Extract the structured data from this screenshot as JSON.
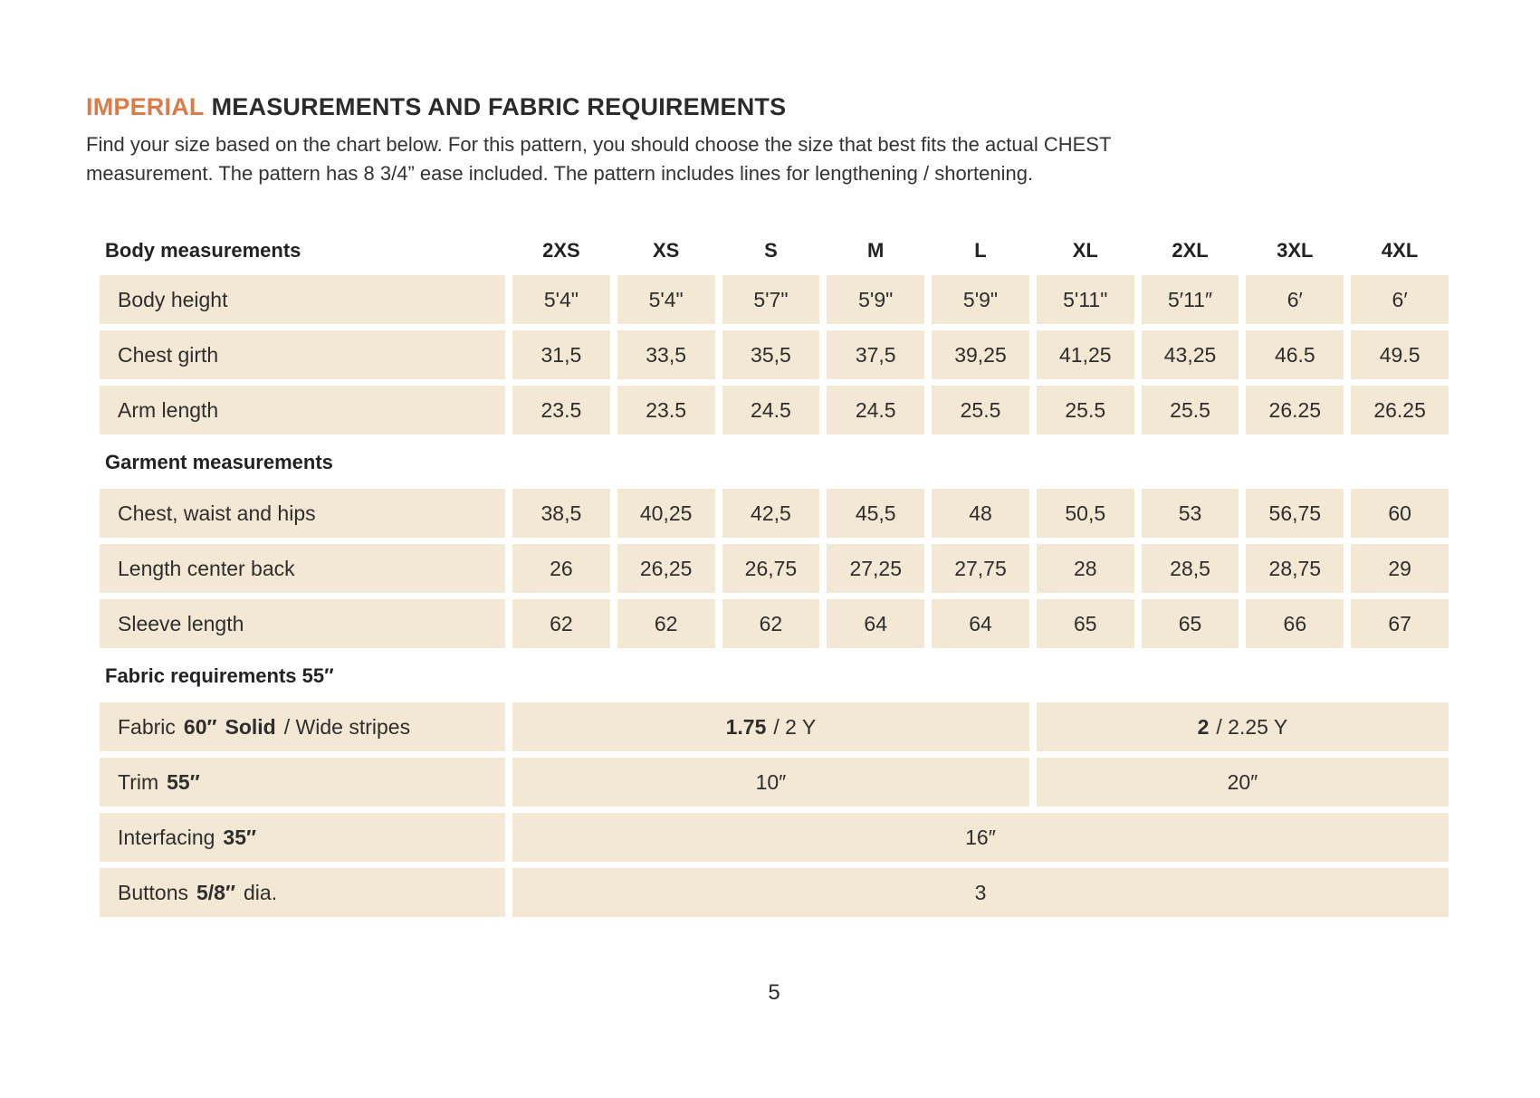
{
  "title": {
    "highlight": "IMPERIAL",
    "rest": "MEASUREMENTS AND FABRIC REQUIREMENTS"
  },
  "intro": {
    "line1": "Find your size based on the chart below. For this pattern, you should choose the size that best fits the actual CHEST",
    "line2": "measurement. The pattern has 8 3/4” ease included. The pattern includes lines for lengthening / shortening."
  },
  "colors": {
    "accent_orange": "#dd7b48",
    "cell_beige": "#f2e8d3",
    "text_dark": "#2d2d2d"
  },
  "table": {
    "sizes": [
      "2XS",
      "XS",
      "S",
      "M",
      "L",
      "XL",
      "2XL",
      "3XL",
      "4XL"
    ],
    "sections": [
      {
        "header": "Body measurements",
        "rows": [
          {
            "label": "Body height",
            "values": [
              "5'4\"",
              "5'4\"",
              "5'7\"",
              "5'9\"",
              "5'9\"",
              "5'11\"",
              "5′11″",
              "6′",
              "6′"
            ]
          },
          {
            "label": "Chest girth",
            "values": [
              "31,5",
              "33,5",
              "35,5",
              "37,5",
              "39,25",
              "41,25",
              "43,25",
              "46.5",
              "49.5"
            ]
          },
          {
            "label": "Arm length",
            "values": [
              "23.5",
              "23.5",
              "24.5",
              "24.5",
              "25.5",
              "25.5",
              "25.5",
              "26.25",
              "26.25"
            ]
          }
        ]
      },
      {
        "header": "Garment measurements",
        "rows": [
          {
            "label": "Chest, waist and hips",
            "values": [
              "38,5",
              "40,25",
              "42,5",
              "45,5",
              "48",
              "50,5",
              "53",
              "56,75",
              "60"
            ]
          },
          {
            "label": "Length center back",
            "values": [
              "26",
              "26,25",
              "26,75",
              "27,25",
              "27,75",
              "28",
              "28,5",
              "28,75",
              "29"
            ]
          },
          {
            "label": "Sleeve length",
            "values": [
              "62",
              "62",
              "62",
              "64",
              "64",
              "65",
              "65",
              "66",
              "67"
            ]
          }
        ]
      }
    ]
  },
  "fabric": {
    "header": "Fabric requirements 55″",
    "row_fabric": {
      "label_pre": "Fabric",
      "label_bold1": "60″",
      "label_bold2": "Solid",
      "label_post": "/ Wide stripes",
      "left_bold": "1.75",
      "left_rest": "/ 2 Y",
      "right_bold": "2",
      "right_rest": "/ 2.25 Y"
    },
    "row_trim": {
      "label_pre": "Trim",
      "label_bold": "55″",
      "left": "10″",
      "right": "20″"
    },
    "row_interfacing": {
      "label_pre": "Interfacing",
      "label_bold": "35″",
      "full": "16″"
    },
    "row_buttons": {
      "label_pre": "Buttons",
      "label_bold": "5/8″",
      "label_post": "dia.",
      "full": "3"
    }
  },
  "footer": {
    "page_number": "5"
  }
}
